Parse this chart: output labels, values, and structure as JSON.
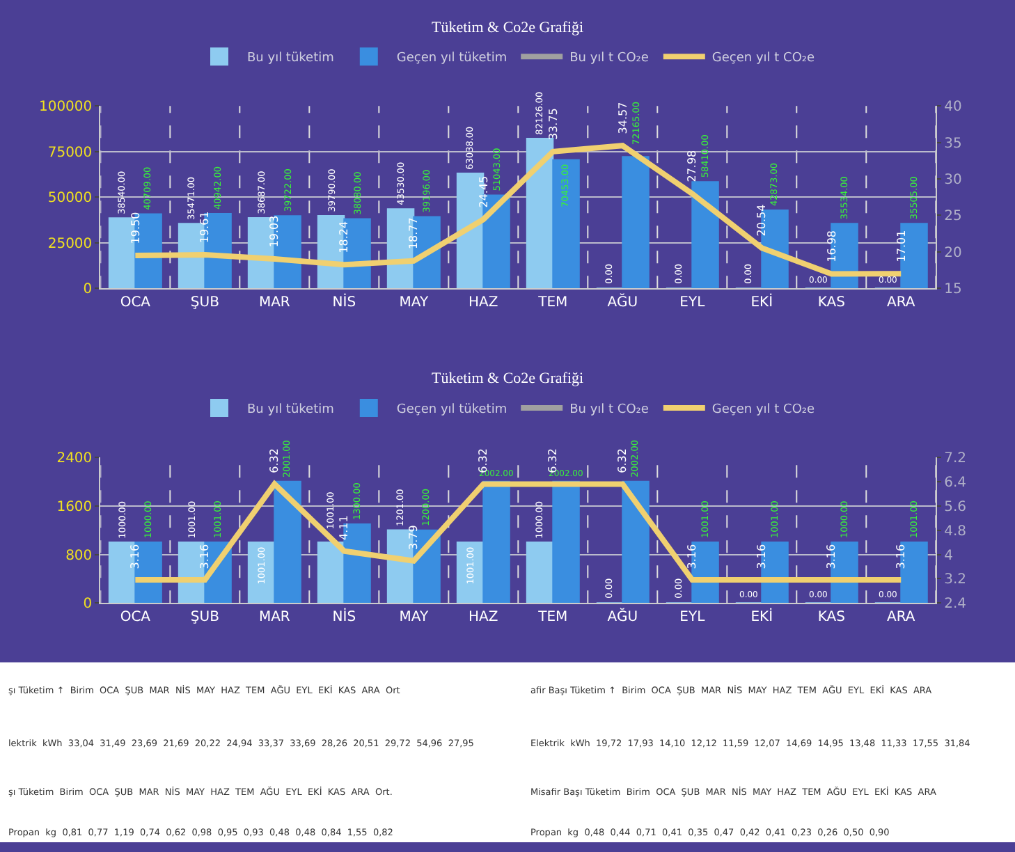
{
  "chart_data": [
    {
      "type": "bar",
      "title": "Tüketim & Co2e Grafiği",
      "categories": [
        "OCA",
        "ŞUB",
        "MAR",
        "NİS",
        "MAY",
        "HAZ",
        "TEM",
        "AĞU",
        "EYL",
        "EKİ",
        "KAS",
        "ARA"
      ],
      "series": [
        {
          "name": "Bu yıl tüketim",
          "color": "#8ecbf0",
          "values": [
            38540,
            35471,
            38687,
            39790,
            43530,
            63038,
            82126,
            0,
            0,
            0,
            0,
            0
          ],
          "value_labels": [
            "38540.00",
            "35471.00",
            "38687.00",
            "39790.00",
            "43530.00",
            "63038.00",
            "82126.00",
            "0.00",
            "0.00",
            "0.00",
            "0.00",
            "0.00"
          ]
        },
        {
          "name": "Geçen yıl tüketim",
          "color": "#3a8ee0",
          "values": [
            40709,
            40942,
            39722,
            38080,
            39196,
            51043,
            70453,
            72165,
            58410,
            42873,
            35534,
            35505
          ],
          "value_labels": [
            "40709.00",
            "40942.00",
            "39722.00",
            "38080.00",
            "39196.00",
            "51043.00",
            "70453.00",
            "72165.00",
            "58410.00",
            "42873.00",
            "35534.00",
            "35505.00"
          ]
        },
        {
          "name": "Bu yıl t CO₂e",
          "type": "line",
          "axis": "y2",
          "color": "#a0a0a0",
          "values": [
            null,
            null,
            null,
            null,
            null,
            null,
            null,
            null,
            null,
            null,
            null,
            null
          ]
        },
        {
          "name": "Geçen yıl t CO₂e",
          "type": "line",
          "axis": "y2",
          "color": "#f0d070",
          "values": [
            19.5,
            19.61,
            19.03,
            18.24,
            18.77,
            24.45,
            33.75,
            34.57,
            27.98,
            20.54,
            16.98,
            17.01
          ],
          "value_labels": [
            "19.50",
            "19.61",
            "19.03",
            "18.24",
            "18.77",
            "24.45",
            "33.75",
            "34.57",
            "27.98",
            "20.54",
            "16.98",
            "17.01"
          ]
        }
      ],
      "ylim": [
        0,
        100000
      ],
      "yticks": [
        0,
        25000,
        50000,
        75000,
        100000
      ],
      "y2lim": [
        15,
        40
      ],
      "y2ticks": [
        15,
        20,
        25,
        30,
        35,
        40
      ],
      "grid": true,
      "legend": "top"
    },
    {
      "type": "bar",
      "title": "Tüketim & Co2e Grafiği",
      "categories": [
        "OCA",
        "ŞUB",
        "MAR",
        "NİS",
        "MAY",
        "HAZ",
        "TEM",
        "AĞU",
        "EYL",
        "EKİ",
        "KAS",
        "ARA"
      ],
      "series": [
        {
          "name": "Bu yıl tüketim",
          "color": "#8ecbf0",
          "values": [
            1000,
            1001,
            1001,
            1001,
            1201,
            1001,
            1000,
            0,
            0,
            0,
            0,
            0
          ],
          "value_labels": [
            "1000.00",
            "1001.00",
            "1001.00",
            "1001.00",
            "1201.00",
            "1001.00",
            "1000.00",
            "0.00",
            "0.00",
            "0.00",
            "0.00",
            "0.00"
          ]
        },
        {
          "name": "Geçen yıl tüketim",
          "color": "#3a8ee0",
          "values": [
            1000,
            1001,
            2001,
            1300,
            1200,
            2002,
            2002,
            2002,
            1001,
            1001,
            1000,
            1001
          ],
          "value_labels": [
            "1000.00",
            "1001.00",
            "2001.00",
            "1300.00",
            "1200.00",
            "2002.00",
            "2002.00",
            "2002.00",
            "1001.00",
            "1001.00",
            "1000.00",
            "1001.00"
          ]
        },
        {
          "name": "Bu yıl t CO₂e",
          "type": "line",
          "axis": "y2",
          "color": "#a0a0a0",
          "values": [
            null,
            null,
            null,
            null,
            null,
            null,
            null,
            null,
            null,
            null,
            null,
            null
          ]
        },
        {
          "name": "Geçen yıl t CO₂e",
          "type": "line",
          "axis": "y2",
          "color": "#f0d070",
          "values": [
            3.16,
            3.16,
            6.32,
            4.11,
            3.79,
            6.32,
            6.32,
            6.32,
            3.16,
            3.16,
            3.16,
            3.16
          ],
          "value_labels": [
            "3.16",
            "3.16",
            "6.32",
            "4.11",
            "3.79",
            "6.32",
            "6.32",
            "6.32",
            "3.16",
            "3.16",
            "3.16",
            "3.16"
          ]
        }
      ],
      "ylim": [
        0,
        2400
      ],
      "yticks": [
        0,
        800,
        1600,
        2400
      ],
      "y2lim": [
        2.4,
        7.2
      ],
      "y2ticks": [
        2.4,
        3.2,
        4,
        4.8,
        5.6,
        6.4,
        7.2
      ],
      "grid": true,
      "legend": "top"
    },
    {
      "type": "other",
      "annotations": [
        "şı Tüketim ↑  Birim  OCA  ŞUB  MAR  NİS  MAY  HAZ  TEM  AĞU  EYL  EKİ  KAS  ARA  Ort",
        "lektrik  kWh  33,04  31,49  23,69  21,69  20,22  24,94  33,37  33,69  28,26  20,51  29,72  54,96  27,95",
        "şı Tüketim  Birim  OCA  ŞUB  MAR  NİS  MAY  HAZ  TEM  AĞU  EYL  EKİ  KAS  ARA  Ort.",
        "Propan  kg  0,81  0,77  1,19  0,74  0,62  0,98  0,95  0,93  0,48  0,48  0,84  1,55  0,82",
        "afir Başı Tüketim ↑  Birim  OCA  ŞUB  MAR  NİS  MAY  HAZ  TEM  AĞU  EYL  EKİ  KAS  ARA",
        "Elektrik  kWh  19,72  17,93  14,10  12,12  11,59  12,07  14,69  14,95  13,48  11,33  17,55  31,84",
        "Misafir Başı Tüketim  Birim  OCA  ŞUB  MAR  NİS  MAY  HAZ  TEM  AĞU  EYL  EKİ  KAS  ARA",
        "Propan  kg  0,48  0,44  0,71  0,41  0,35  0,47  0,42  0,41  0,23  0,26  0,50  0,90"
      ]
    }
  ]
}
